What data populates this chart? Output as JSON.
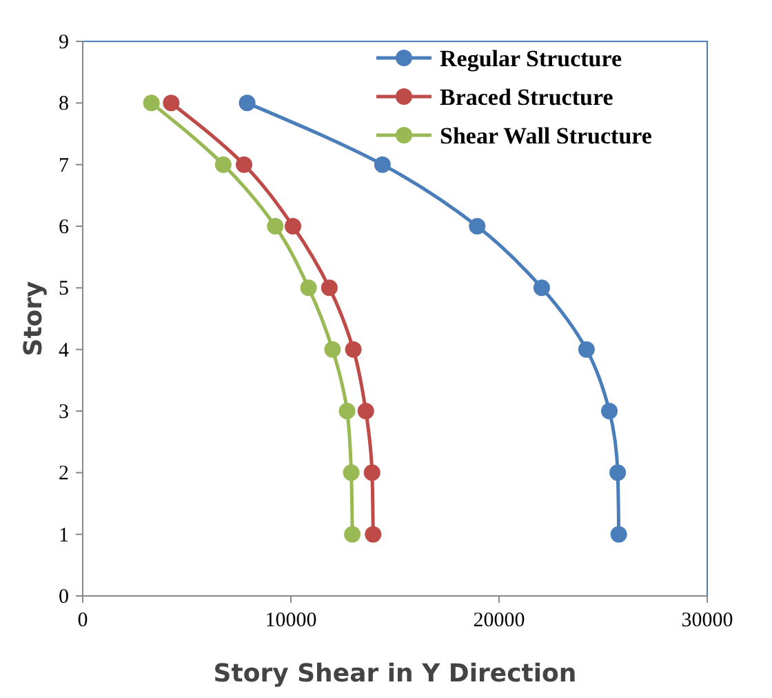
{
  "chart_data": {
    "type": "line",
    "xlabel": "Story Shear in Y Direction",
    "ylabel": "Story",
    "xlim": [
      0,
      30000
    ],
    "xticks": [
      0,
      10000,
      20000,
      30000
    ],
    "ylim": [
      0,
      9
    ],
    "yticks": [
      0,
      1,
      2,
      3,
      4,
      5,
      6,
      7,
      8,
      9
    ],
    "grid": false,
    "legend": "top right",
    "marker": "circle",
    "line_style": "solid",
    "series": [
      {
        "name": "Regular Structure",
        "color": "#4a7ebb",
        "x": [
          7900,
          14400,
          18950,
          22050,
          24200,
          25300,
          25700,
          25750
        ],
        "values": [
          8,
          7,
          6,
          5,
          4,
          3,
          2,
          1
        ]
      },
      {
        "name": "Braced Structure",
        "color": "#be4b48",
        "x": [
          4250,
          7750,
          10100,
          11850,
          13000,
          13600,
          13900,
          13950
        ],
        "values": [
          8,
          7,
          6,
          5,
          4,
          3,
          2,
          1
        ]
      },
      {
        "name": "Shear Wall Structure",
        "color": "#98b954",
        "x": [
          3300,
          6750,
          9250,
          10850,
          12000,
          12700,
          12900,
          12950
        ],
        "values": [
          8,
          7,
          6,
          5,
          4,
          3,
          2,
          1
        ]
      }
    ]
  }
}
